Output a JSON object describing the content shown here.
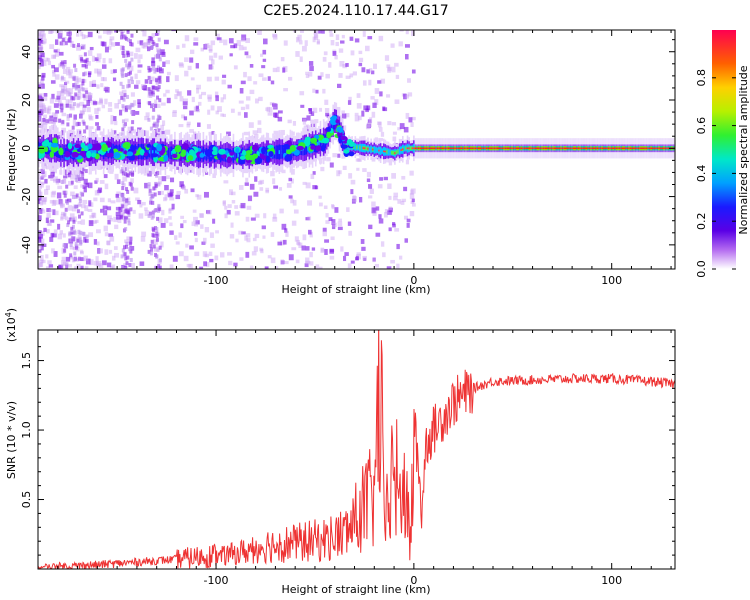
{
  "title": "C2E5.2024.110.17.44.G17",
  "chart_data": [
    {
      "type": "heatmap",
      "xlabel": "Height of straight line (km)",
      "ylabel": "Frequency (Hz)",
      "xlim": [
        -190,
        132
      ],
      "ylim": [
        -50,
        49
      ],
      "xticks": [
        -100,
        0,
        100
      ],
      "yticks": [
        40,
        20,
        0,
        -20,
        -40
      ],
      "colorbar": {
        "label": "Normalized spectral amplitude",
        "range": [
          0,
          1
        ],
        "ticks": [
          0.0,
          0.2,
          0.4,
          0.6,
          0.8
        ]
      },
      "ridge": [
        {
          "x": -180,
          "y": -2
        },
        {
          "x": -150,
          "y": -1
        },
        {
          "x": -120,
          "y": -2
        },
        {
          "x": -90,
          "y": -3
        },
        {
          "x": -60,
          "y": -1
        },
        {
          "x": -45,
          "y": 3
        },
        {
          "x": -40,
          "y": 12
        },
        {
          "x": -35,
          "y": 1
        },
        {
          "x": -25,
          "y": 0
        },
        {
          "x": -10,
          "y": -2
        },
        {
          "x": -5,
          "y": 0
        },
        {
          "x": 0,
          "y": 0
        },
        {
          "x": 132,
          "y": 0
        }
      ]
    },
    {
      "type": "line",
      "xlabel": "Height of straight line (km)",
      "ylabel": "SNR (10 * v/v)",
      "yexponent": "(x10",
      "yexponent_power": "4",
      "exponent_close": ")",
      "xlim": [
        -190,
        132
      ],
      "ylim": [
        0,
        1.72
      ],
      "xticks": [
        -100,
        0,
        100
      ],
      "yticks": [
        0.5,
        1.0,
        1.5
      ],
      "color": "#ee3333",
      "series": [
        {
          "x": [
            -190,
            -160,
            -140,
            -120,
            -100,
            -85,
            -75,
            -60,
            -45,
            -35,
            -30,
            -25,
            -20,
            -17,
            -15,
            -12,
            -10,
            -7,
            -4,
            -2,
            0,
            2,
            4,
            6,
            10,
            20,
            30,
            40,
            60,
            80,
            100,
            120,
            132
          ],
          "y": [
            0.01,
            0.03,
            0.05,
            0.07,
            0.1,
            0.15,
            0.2,
            0.22,
            0.25,
            0.3,
            0.4,
            0.55,
            0.6,
            1.7,
            0.3,
            0.7,
            0.9,
            0.5,
            0.8,
            0.12,
            1.05,
            0.8,
            0.4,
            0.9,
            1.0,
            1.2,
            1.3,
            1.35,
            1.36,
            1.37,
            1.37,
            1.35,
            1.33
          ]
        }
      ]
    }
  ]
}
